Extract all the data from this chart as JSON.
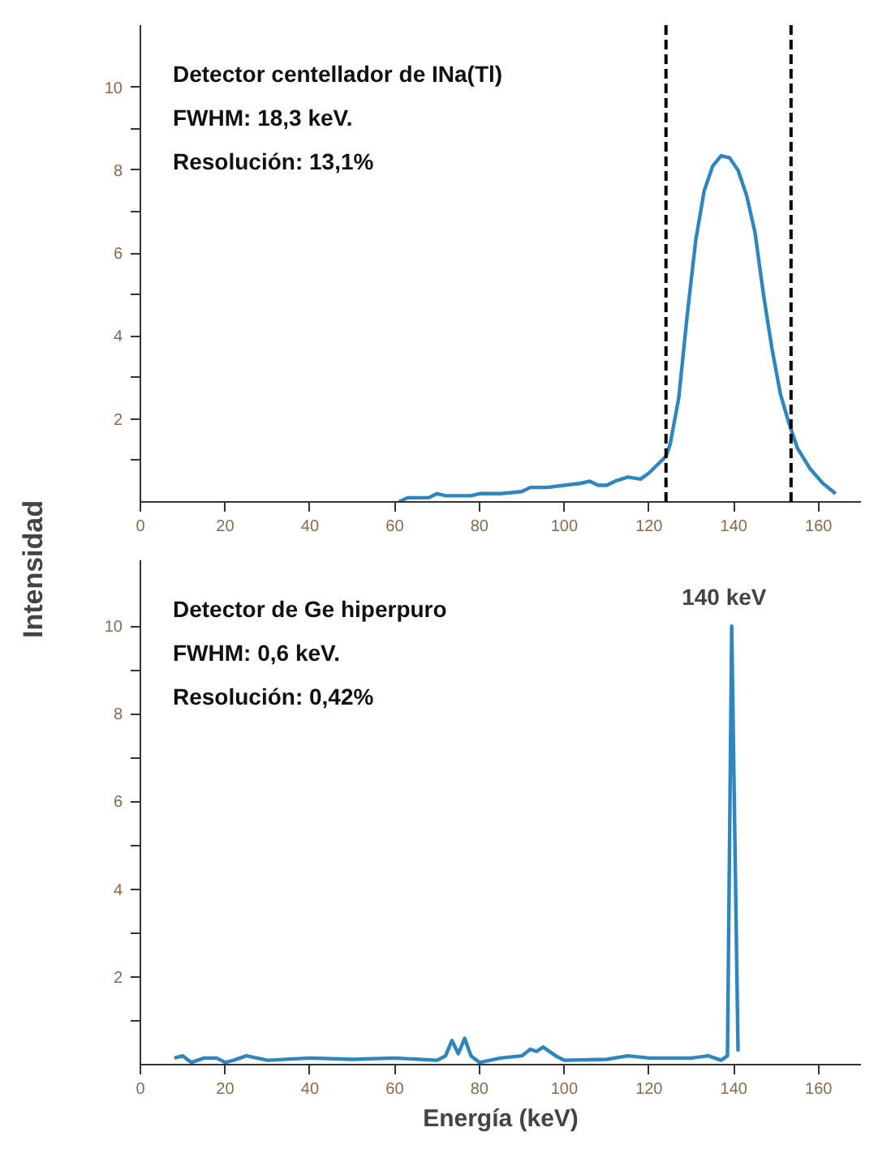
{
  "chart_data": [
    {
      "type": "line",
      "ylabel": "Intensidad",
      "xlim": [
        0,
        170
      ],
      "ylim": [
        0,
        11.5
      ],
      "xticks": [
        0,
        20,
        40,
        60,
        80,
        100,
        120,
        140,
        160
      ],
      "yticks": [
        {
          "value": 1,
          "label": null
        },
        2,
        {
          "value": 3,
          "label": null
        },
        4,
        {
          "value": 5,
          "label": null
        },
        6,
        {
          "value": 7,
          "label": null
        },
        8,
        {
          "value": 9,
          "label": null
        },
        10
      ],
      "grid": false,
      "annotations": [
        "Detector centellador de INa(Tl)",
        "FWHM: 18,3 keV.",
        "Resolución: 13,1%"
      ],
      "ref_lines": [
        {
          "axis": "x",
          "value": 124,
          "label": null,
          "color": "#000000",
          "line_style": "dashed"
        },
        {
          "axis": "x",
          "value": 153.5,
          "label": null,
          "color": "#000000",
          "line_style": "dashed"
        }
      ],
      "series": [
        {
          "color": "#2e86c1",
          "x": [
            61,
            63,
            66,
            68,
            70,
            72,
            75,
            78,
            80,
            85,
            90,
            92,
            96,
            100,
            104,
            106,
            108,
            110,
            112,
            115,
            118,
            120,
            122,
            124,
            125,
            127,
            129,
            131,
            133,
            135,
            137,
            139,
            141,
            143,
            145,
            147,
            149,
            151,
            153,
            155,
            158,
            161,
            164
          ],
          "values": [
            0,
            0.1,
            0.1,
            0.1,
            0.2,
            0.15,
            0.15,
            0.15,
            0.2,
            0.2,
            0.25,
            0.35,
            0.35,
            0.4,
            0.45,
            0.5,
            0.4,
            0.4,
            0.5,
            0.6,
            0.55,
            0.7,
            0.9,
            1.1,
            1.4,
            2.5,
            4.5,
            6.3,
            7.5,
            8.1,
            8.35,
            8.3,
            8.0,
            7.4,
            6.5,
            5.0,
            3.7,
            2.6,
            1.9,
            1.3,
            0.8,
            0.45,
            0.2
          ]
        }
      ]
    },
    {
      "type": "line",
      "xlabel": "Energía (keV)",
      "xlim": [
        0,
        170
      ],
      "ylim": [
        0,
        11.5
      ],
      "xticks": [
        0,
        20,
        40,
        60,
        80,
        100,
        120,
        140,
        160
      ],
      "yticks": [
        {
          "value": 1,
          "label": null
        },
        2,
        {
          "value": 3,
          "label": null
        },
        4,
        {
          "value": 5,
          "label": null
        },
        6,
        {
          "value": 7,
          "label": null
        },
        8,
        {
          "value": 9,
          "label": null
        },
        10
      ],
      "grid": false,
      "annotations": [
        "Detector de Ge hiperpuro",
        "FWHM: 0,6 keV.",
        "Resolución: 0,42%",
        {
          "text": "140 keV",
          "x": 140,
          "y": 10
        }
      ],
      "series": [
        {
          "color": "#2e86c1",
          "x": [
            8,
            10,
            12,
            15,
            18,
            20,
            22,
            25,
            30,
            40,
            50,
            60,
            70,
            72,
            73.5,
            75,
            76.5,
            78,
            80,
            85,
            90,
            92,
            93.5,
            95,
            98,
            100,
            110,
            115,
            120,
            130,
            134,
            137,
            138.5,
            139.5,
            141
          ],
          "values": [
            0.15,
            0.2,
            0.05,
            0.15,
            0.15,
            0.05,
            0.1,
            0.2,
            0.1,
            0.15,
            0.12,
            0.15,
            0.1,
            0.2,
            0.55,
            0.25,
            0.6,
            0.2,
            0.05,
            0.15,
            0.2,
            0.35,
            0.3,
            0.4,
            0.2,
            0.1,
            0.12,
            0.2,
            0.15,
            0.15,
            0.2,
            0.1,
            0.2,
            10,
            0.3
          ]
        }
      ]
    }
  ]
}
